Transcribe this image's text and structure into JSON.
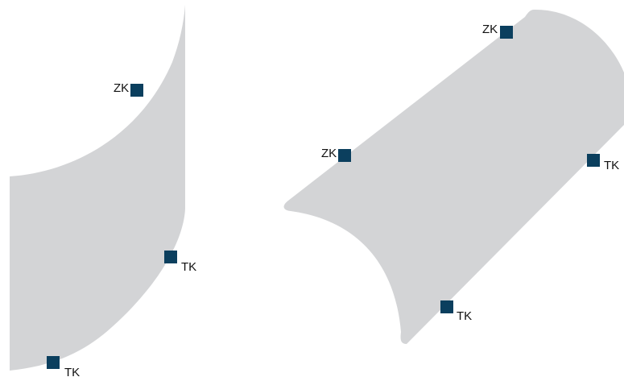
{
  "colors": {
    "shape_fill": "#d3d4d6",
    "marker_fill": "#0b3f5e",
    "label_text": "#111111"
  },
  "left_shape": {
    "points": {
      "upper": {
        "label": "ZK"
      },
      "middle": {
        "label": "TK"
      },
      "lower": {
        "label": "TK"
      }
    }
  },
  "right_shape": {
    "points": {
      "top": {
        "label": "ZK"
      },
      "left": {
        "label": "ZK"
      },
      "right": {
        "label": "TK"
      },
      "bottom": {
        "label": "TK"
      }
    }
  }
}
